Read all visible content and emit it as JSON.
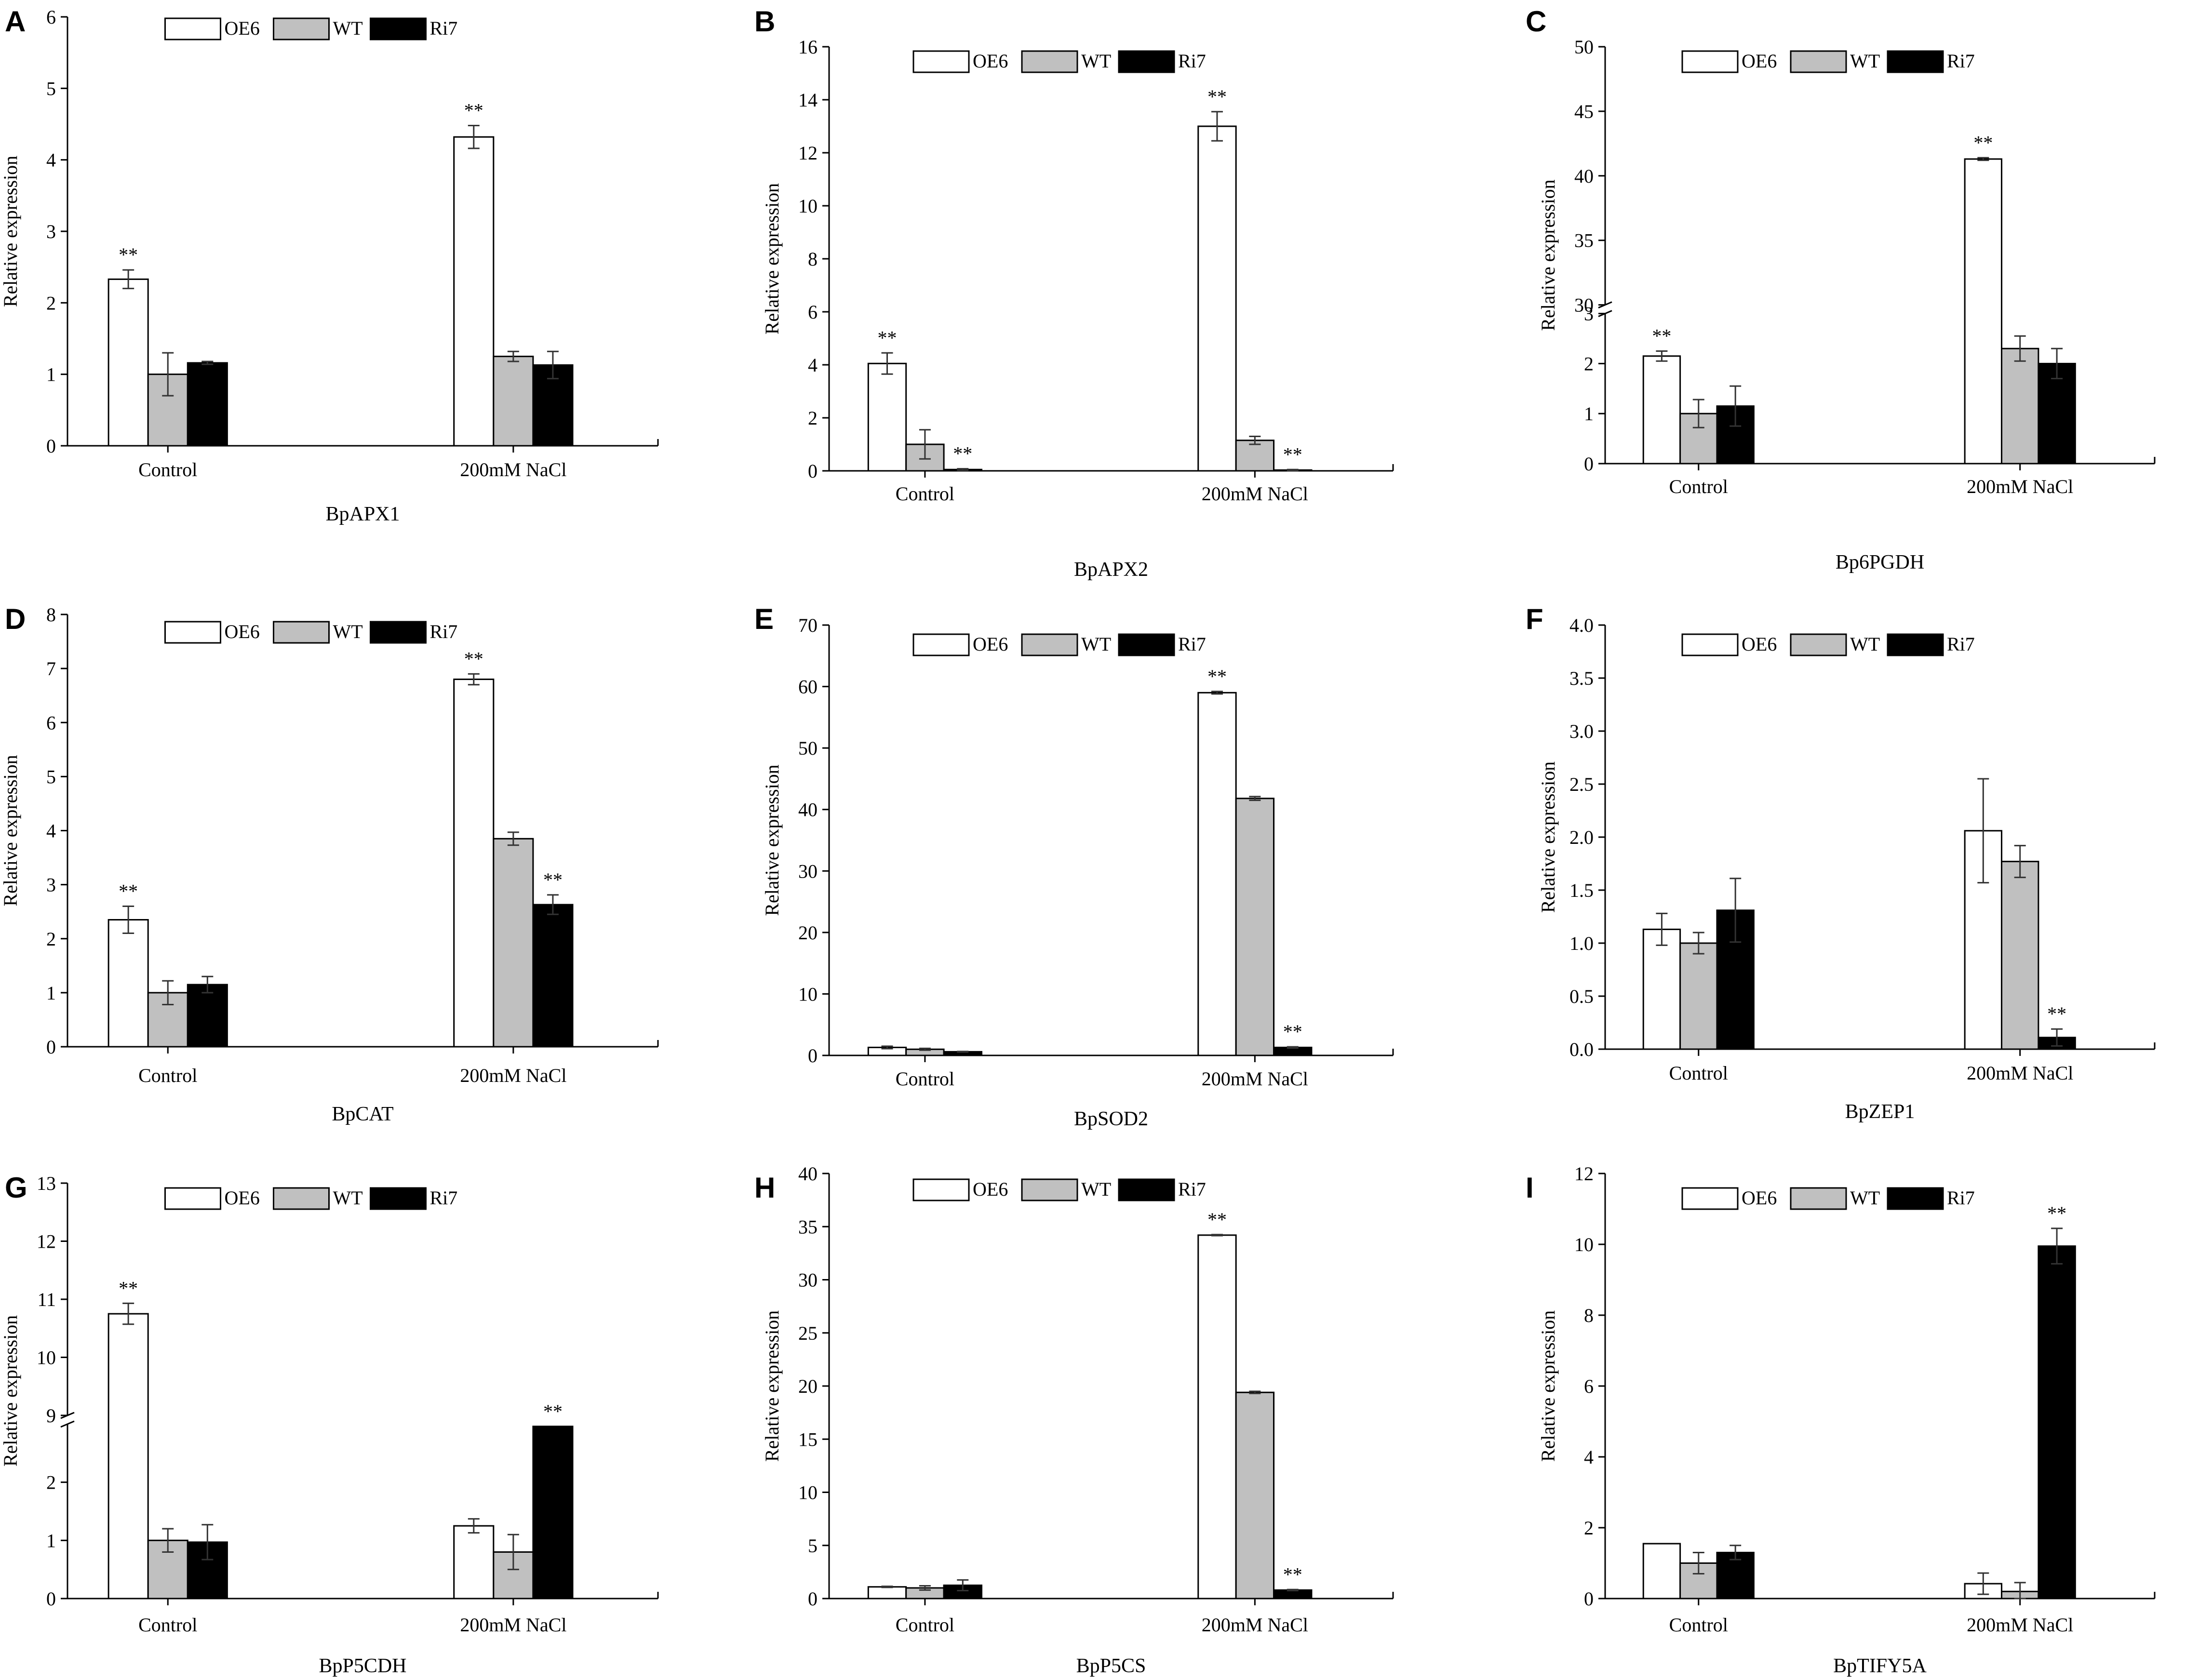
{
  "figure": {
    "groups": [
      "Control",
      "200mM NaCl"
    ],
    "ylabel": "Relative expression",
    "legend": [
      {
        "label": "OE6",
        "color": "#ffffff"
      },
      {
        "label": "WT",
        "color": "#c0c0c0"
      },
      {
        "label": "Ri7",
        "color": "#000000"
      }
    ],
    "significance_label": "**"
  },
  "chart_data": [
    {
      "panel": "A",
      "title": "BpAPX1",
      "type": "bar",
      "ylabel": "Relative expression",
      "categories": [
        "Control",
        "200mM NaCl"
      ],
      "series": [
        {
          "name": "OE6",
          "values": [
            2.33,
            4.32
          ],
          "errors": [
            0.13,
            0.16
          ],
          "sig": [
            true,
            true
          ]
        },
        {
          "name": "WT",
          "values": [
            1.0,
            1.25
          ],
          "errors": [
            0.3,
            0.07
          ],
          "sig": [
            false,
            false
          ]
        },
        {
          "name": "Ri7",
          "values": [
            1.16,
            1.13
          ],
          "errors": [
            0.02,
            0.19
          ],
          "sig": [
            false,
            false
          ]
        }
      ],
      "ylim": [
        0,
        6
      ],
      "yticks": [
        0,
        1,
        2,
        3,
        4,
        5,
        6
      ]
    },
    {
      "panel": "B",
      "title": "BpAPX2",
      "type": "bar",
      "ylabel": "Relative expression",
      "categories": [
        "Control",
        "200mM NaCl"
      ],
      "series": [
        {
          "name": "OE6",
          "values": [
            4.05,
            13.0
          ],
          "errors": [
            0.4,
            0.55
          ],
          "sig": [
            true,
            true
          ]
        },
        {
          "name": "WT",
          "values": [
            1.0,
            1.15
          ],
          "errors": [
            0.55,
            0.15
          ],
          "sig": [
            false,
            false
          ]
        },
        {
          "name": "Ri7",
          "values": [
            0.05,
            0.03
          ],
          "errors": [
            0.03,
            0.02
          ],
          "sig": [
            true,
            true
          ]
        }
      ],
      "ylim": [
        0,
        16
      ],
      "yticks": [
        0,
        2,
        4,
        6,
        8,
        10,
        12,
        14,
        16
      ]
    },
    {
      "panel": "C",
      "title": "Bp6PGDH",
      "type": "bar",
      "ylabel": "Relative expression",
      "categories": [
        "Control",
        "200mM NaCl"
      ],
      "series": [
        {
          "name": "OE6",
          "values": [
            2.15,
            41.3
          ],
          "errors": [
            0.1,
            0.1
          ],
          "sig": [
            true,
            true
          ]
        },
        {
          "name": "WT",
          "values": [
            1.0,
            2.3
          ],
          "errors": [
            0.28,
            0.25
          ],
          "sig": [
            false,
            false
          ]
        },
        {
          "name": "Ri7",
          "values": [
            1.15,
            2.0
          ],
          "errors": [
            0.4,
            0.3
          ],
          "sig": [
            false,
            false
          ]
        }
      ],
      "broken_axis": {
        "lower": [
          0,
          3
        ],
        "upper": [
          30,
          50
        ]
      },
      "yticks_lower": [
        0,
        1,
        2,
        3
      ],
      "yticks_upper": [
        30,
        35,
        40,
        45,
        50
      ]
    },
    {
      "panel": "D",
      "title": "BpCAT",
      "type": "bar",
      "ylabel": "Relative expression",
      "categories": [
        "Control",
        "200mM NaCl"
      ],
      "series": [
        {
          "name": "OE6",
          "values": [
            2.35,
            6.8
          ],
          "errors": [
            0.25,
            0.1
          ],
          "sig": [
            true,
            true
          ]
        },
        {
          "name": "WT",
          "values": [
            1.0,
            3.85
          ],
          "errors": [
            0.22,
            0.12
          ],
          "sig": [
            false,
            false
          ]
        },
        {
          "name": "Ri7",
          "values": [
            1.15,
            2.63
          ],
          "errors": [
            0.15,
            0.18
          ],
          "sig": [
            false,
            true
          ]
        }
      ],
      "ylim": [
        0,
        8
      ],
      "yticks": [
        0,
        1,
        2,
        3,
        4,
        5,
        6,
        7,
        8
      ]
    },
    {
      "panel": "E",
      "title": "BpSOD2",
      "type": "bar",
      "ylabel": "Relative expression",
      "categories": [
        "Control",
        "200mM NaCl"
      ],
      "series": [
        {
          "name": "OE6",
          "values": [
            1.3,
            59.0
          ],
          "errors": [
            0.2,
            0.2
          ],
          "sig": [
            false,
            true
          ]
        },
        {
          "name": "WT",
          "values": [
            1.0,
            41.8
          ],
          "errors": [
            0.15,
            0.3
          ],
          "sig": [
            false,
            false
          ]
        },
        {
          "name": "Ri7",
          "values": [
            0.6,
            1.3
          ],
          "errors": [
            0.05,
            0.1
          ],
          "sig": [
            false,
            true
          ]
        }
      ],
      "ylim": [
        0,
        70
      ],
      "yticks": [
        0,
        10,
        20,
        30,
        40,
        50,
        60,
        70
      ]
    },
    {
      "panel": "F",
      "title": "BpZEP1",
      "type": "bar",
      "ylabel": "Relative expression",
      "categories": [
        "Control",
        "200mM NaCl"
      ],
      "series": [
        {
          "name": "OE6",
          "values": [
            1.13,
            2.06
          ],
          "errors": [
            0.15,
            0.49
          ],
          "sig": [
            false,
            false
          ]
        },
        {
          "name": "WT",
          "values": [
            1.0,
            1.77
          ],
          "errors": [
            0.1,
            0.15
          ],
          "sig": [
            false,
            false
          ]
        },
        {
          "name": "Ri7",
          "values": [
            1.31,
            0.11
          ],
          "errors": [
            0.3,
            0.08
          ],
          "sig": [
            false,
            true
          ]
        }
      ],
      "ylim": [
        0,
        4
      ],
      "yticks": [
        "0.0",
        "0.5",
        "1.0",
        "1.5",
        "2.0",
        "2.5",
        "3.0",
        "3.5",
        "4.0"
      ]
    },
    {
      "panel": "G",
      "title": "BpP5CDH",
      "type": "bar",
      "ylabel": "Relative expression",
      "categories": [
        "Control",
        "200mM NaCl"
      ],
      "series": [
        {
          "name": "OE6",
          "values": [
            10.75,
            1.25
          ],
          "errors": [
            0.18,
            0.12
          ],
          "sig": [
            true,
            false
          ]
        },
        {
          "name": "WT",
          "values": [
            1.0,
            0.8
          ],
          "errors": [
            0.2,
            0.3
          ],
          "sig": [
            false,
            false
          ]
        },
        {
          "name": "Ri7",
          "values": [
            0.97,
            2.96
          ],
          "errors": [
            0.3,
            0.0
          ],
          "sig": [
            false,
            true
          ]
        }
      ],
      "broken_axis": {
        "lower": [
          0,
          3
        ],
        "upper": [
          9,
          13
        ]
      },
      "yticks_lower": [
        0,
        1,
        2
      ],
      "yticks_upper": [
        9,
        10,
        11,
        12,
        13
      ]
    },
    {
      "panel": "H",
      "title": "BpP5CS",
      "type": "bar",
      "ylabel": "Relative expression",
      "categories": [
        "Control",
        "200mM NaCl"
      ],
      "series": [
        {
          "name": "OE6",
          "values": [
            1.1,
            34.2
          ],
          "errors": [
            0.05,
            0.05
          ],
          "sig": [
            false,
            true
          ]
        },
        {
          "name": "WT",
          "values": [
            1.0,
            19.4
          ],
          "errors": [
            0.2,
            0.1
          ],
          "sig": [
            false,
            false
          ]
        },
        {
          "name": "Ri7",
          "values": [
            1.25,
            0.8
          ],
          "errors": [
            0.5,
            0.05
          ],
          "sig": [
            false,
            true
          ]
        }
      ],
      "ylim": [
        0,
        40
      ],
      "yticks": [
        0,
        5,
        10,
        15,
        20,
        25,
        30,
        35,
        40
      ]
    },
    {
      "panel": "I",
      "title": "BpTIFY5A",
      "type": "bar",
      "ylabel": "Relative expression",
      "categories": [
        "Control",
        "200mM NaCl"
      ],
      "series": [
        {
          "name": "OE6",
          "values": [
            1.55,
            0.42
          ],
          "errors": [
            0.0,
            0.3
          ],
          "sig": [
            false,
            false
          ]
        },
        {
          "name": "WT",
          "values": [
            1.0,
            0.2
          ],
          "errors": [
            0.3,
            0.25
          ],
          "sig": [
            false,
            false
          ]
        },
        {
          "name": "Ri7",
          "values": [
            1.3,
            9.95
          ],
          "errors": [
            0.2,
            0.5
          ],
          "sig": [
            false,
            true
          ]
        }
      ],
      "ylim": [
        0,
        12
      ],
      "yticks": [
        0,
        2,
        4,
        6,
        8,
        10,
        12
      ]
    }
  ]
}
